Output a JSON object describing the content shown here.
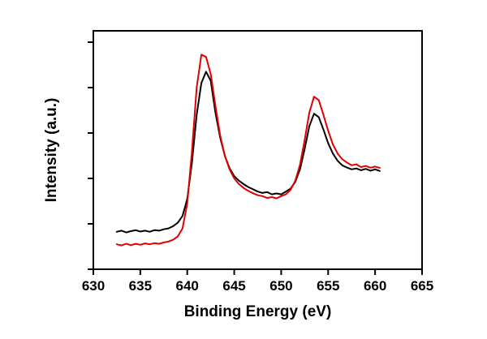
{
  "chart_data": {
    "type": "line",
    "title": "",
    "xlabel": "Binding Energy (eV)",
    "ylabel": "Intensity (a.u.)",
    "xlim": [
      630,
      665
    ],
    "ylim": [
      0,
      1.05
    ],
    "x_ticks": [
      630,
      635,
      640,
      645,
      650,
      655,
      660,
      665
    ],
    "y_ticks": [
      0,
      0.2,
      0.4,
      0.6,
      0.8,
      1.0
    ],
    "grid": false,
    "legend_position": "none",
    "x": [
      632.5,
      633,
      633.5,
      634,
      634.5,
      635,
      635.5,
      636,
      636.5,
      637,
      637.5,
      638,
      638.5,
      639,
      639.5,
      640,
      640.5,
      641,
      641.5,
      642,
      642.5,
      643,
      643.5,
      644,
      644.5,
      645,
      645.5,
      646,
      646.5,
      647,
      647.5,
      648,
      648.5,
      649,
      649.5,
      650,
      650.5,
      651,
      651.5,
      652,
      652.5,
      653,
      653.5,
      654,
      654.5,
      655,
      655.5,
      656,
      656.5,
      657,
      657.5,
      658,
      658.5,
      659,
      659.5,
      660,
      660.5
    ],
    "series": [
      {
        "name": "black-spectrum",
        "color": "#000000",
        "y": [
          0.165,
          0.17,
          0.162,
          0.168,
          0.172,
          0.166,
          0.17,
          0.165,
          0.172,
          0.17,
          0.176,
          0.18,
          0.19,
          0.205,
          0.235,
          0.31,
          0.47,
          0.68,
          0.82,
          0.87,
          0.83,
          0.69,
          0.58,
          0.5,
          0.445,
          0.41,
          0.39,
          0.375,
          0.362,
          0.352,
          0.342,
          0.336,
          0.34,
          0.33,
          0.334,
          0.33,
          0.342,
          0.355,
          0.385,
          0.44,
          0.53,
          0.63,
          0.685,
          0.67,
          0.615,
          0.555,
          0.51,
          0.478,
          0.458,
          0.448,
          0.44,
          0.444,
          0.436,
          0.442,
          0.434,
          0.44,
          0.433
        ]
      },
      {
        "name": "red-spectrum",
        "color": "#e00000",
        "y": [
          0.11,
          0.105,
          0.112,
          0.106,
          0.112,
          0.108,
          0.114,
          0.11,
          0.115,
          0.112,
          0.118,
          0.122,
          0.13,
          0.145,
          0.18,
          0.29,
          0.52,
          0.8,
          0.945,
          0.935,
          0.86,
          0.72,
          0.59,
          0.5,
          0.44,
          0.4,
          0.375,
          0.358,
          0.345,
          0.335,
          0.326,
          0.322,
          0.314,
          0.318,
          0.312,
          0.322,
          0.33,
          0.35,
          0.39,
          0.46,
          0.57,
          0.69,
          0.76,
          0.745,
          0.68,
          0.61,
          0.55,
          0.51,
          0.485,
          0.47,
          0.458,
          0.462,
          0.45,
          0.455,
          0.447,
          0.452,
          0.446
        ]
      }
    ]
  }
}
